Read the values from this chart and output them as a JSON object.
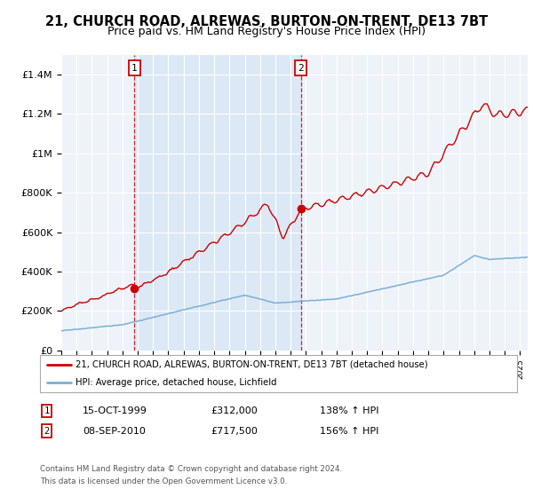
{
  "title": "21, CHURCH ROAD, ALREWAS, BURTON-ON-TRENT, DE13 7BT",
  "subtitle": "Price paid vs. HM Land Registry's House Price Index (HPI)",
  "title_fontsize": 10.5,
  "subtitle_fontsize": 9,
  "ylim": [
    0,
    1500000
  ],
  "yticks": [
    0,
    200000,
    400000,
    600000,
    800000,
    1000000,
    1200000,
    1400000
  ],
  "ytick_labels": [
    "£0",
    "£200K",
    "£400K",
    "£600K",
    "£800K",
    "£1M",
    "£1.2M",
    "£1.4M"
  ],
  "xlim_start": 1995.0,
  "xlim_end": 2025.5,
  "sale1_year": 1999.79,
  "sale1_price": 312000,
  "sale2_year": 2010.68,
  "sale2_price": 717500,
  "sale_color": "#cc0000",
  "hpi_color": "#7ab0d4",
  "background_color": "#ffffff",
  "plot_bg_color": "#eef3fa",
  "shade_color": "#dce8f5",
  "legend_label1": "21, CHURCH ROAD, ALREWAS, BURTON-ON-TRENT, DE13 7BT (detached house)",
  "legend_label2": "HPI: Average price, detached house, Lichfield",
  "footer1": "Contains HM Land Registry data © Crown copyright and database right 2024.",
  "footer2": "This data is licensed under the Open Government Licence v3.0.",
  "table_row1_num": "1",
  "table_row1_date": "15-OCT-1999",
  "table_row1_price": "£312,000",
  "table_row1_hpi": "138% ↑ HPI",
  "table_row2_num": "2",
  "table_row2_date": "08-SEP-2010",
  "table_row2_price": "£717,500",
  "table_row2_hpi": "156% ↑ HPI"
}
